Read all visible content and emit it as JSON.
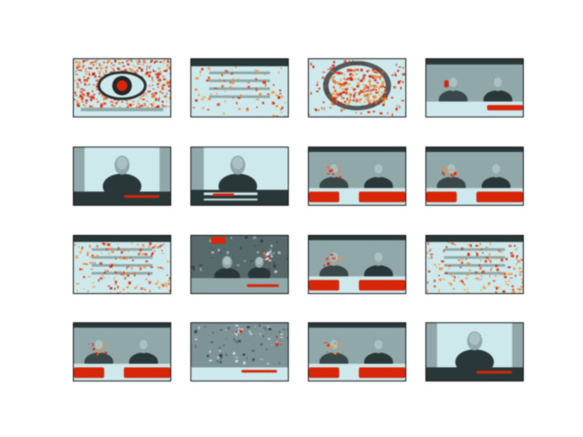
{
  "colors": {
    "background": "#ffffff",
    "heat_high": "#d42a10",
    "heat_mid": "#f08a30",
    "screen_light": "#c9e4e6",
    "screen_mid": "#8fa6a8",
    "screen_dark": "#2e3a3c",
    "border": "#1c1c1c"
  },
  "grid": {
    "rows": 4,
    "cols": 4
  },
  "panels": [
    {
      "kind": "eye-logo"
    },
    {
      "kind": "text-slide"
    },
    {
      "kind": "globe-logo"
    },
    {
      "kind": "two-anchors"
    },
    {
      "kind": "one-anchor"
    },
    {
      "kind": "one-anchor-low"
    },
    {
      "kind": "two-anchors-red"
    },
    {
      "kind": "two-anchors-red"
    },
    {
      "kind": "text-slide-red"
    },
    {
      "kind": "studio-dark"
    },
    {
      "kind": "two-anchors-red"
    },
    {
      "kind": "text-slide-red"
    },
    {
      "kind": "two-anchors-red"
    },
    {
      "kind": "studio-blur"
    },
    {
      "kind": "two-anchors-red"
    },
    {
      "kind": "one-anchor"
    }
  ]
}
